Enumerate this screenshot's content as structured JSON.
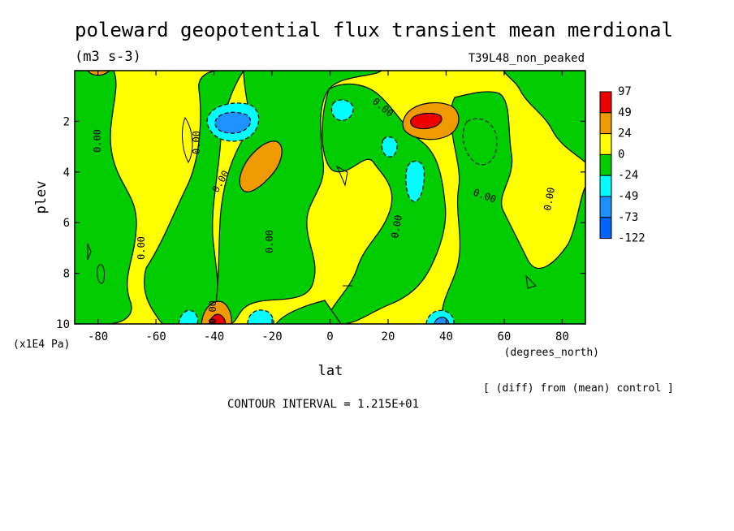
{
  "chart_data": {
    "type": "heatmap",
    "title": "poleward geopotential flux transient mean merdional",
    "units": "(m3 s-3)",
    "run_label": "T39L48_non_peaked",
    "xlabel": "lat",
    "x_units": "(degrees_north)",
    "ylabel": "plev",
    "y_units": "(x1E4 Pa)",
    "xlim": [
      -88,
      88
    ],
    "ylim": [
      0,
      10
    ],
    "y_inverted": true,
    "x_ticks": [
      -80,
      -60,
      -40,
      -20,
      0,
      20,
      40,
      60,
      80
    ],
    "x_tick_labels": [
      "-80",
      "-60",
      "-40",
      "-20",
      "0",
      "20",
      "40",
      "60",
      "80"
    ],
    "y_ticks": [
      2,
      4,
      6,
      8,
      10
    ],
    "y_tick_labels": [
      "2",
      "4",
      "6",
      "8",
      "10"
    ],
    "contour_labels": [
      "0.00",
      "0.00",
      "0.00",
      "0.00",
      "0.00",
      "0.00",
      "0.00",
      "0.00",
      "0.00",
      "0.00"
    ],
    "colorbar": {
      "labels": [
        "97",
        "49",
        "24",
        "0",
        "-24",
        "-49",
        "-73",
        "-122"
      ],
      "colors": [
        "#ee0000",
        "#ee9a00",
        "#ffff00",
        "#00cc00",
        "#00ffff",
        "#1e90ff",
        "#0064ff"
      ]
    },
    "features": [
      {
        "lat": 32,
        "plev": 2.0,
        "value": 97,
        "sign": "positive"
      },
      {
        "lat": -25,
        "plev": 4.0,
        "value": 30,
        "sign": "positive"
      },
      {
        "lat": -40,
        "plev": 9.9,
        "value": 97,
        "sign": "positive"
      },
      {
        "lat": -35,
        "plev": 2.0,
        "value": -60,
        "sign": "negative"
      },
      {
        "lat": 8,
        "plev": 1.7,
        "value": -30,
        "sign": "negative"
      },
      {
        "lat": 30,
        "plev": 4.5,
        "value": -30,
        "sign": "negative"
      },
      {
        "lat": -28,
        "plev": 9.8,
        "value": -30,
        "sign": "negative"
      },
      {
        "lat": 40,
        "plev": 9.8,
        "value": -49,
        "sign": "negative"
      }
    ],
    "annotation": "[ (diff) from (mean) control ]",
    "contour_interval_text": "CONTOUR INTERVAL = 1.215E+01"
  }
}
